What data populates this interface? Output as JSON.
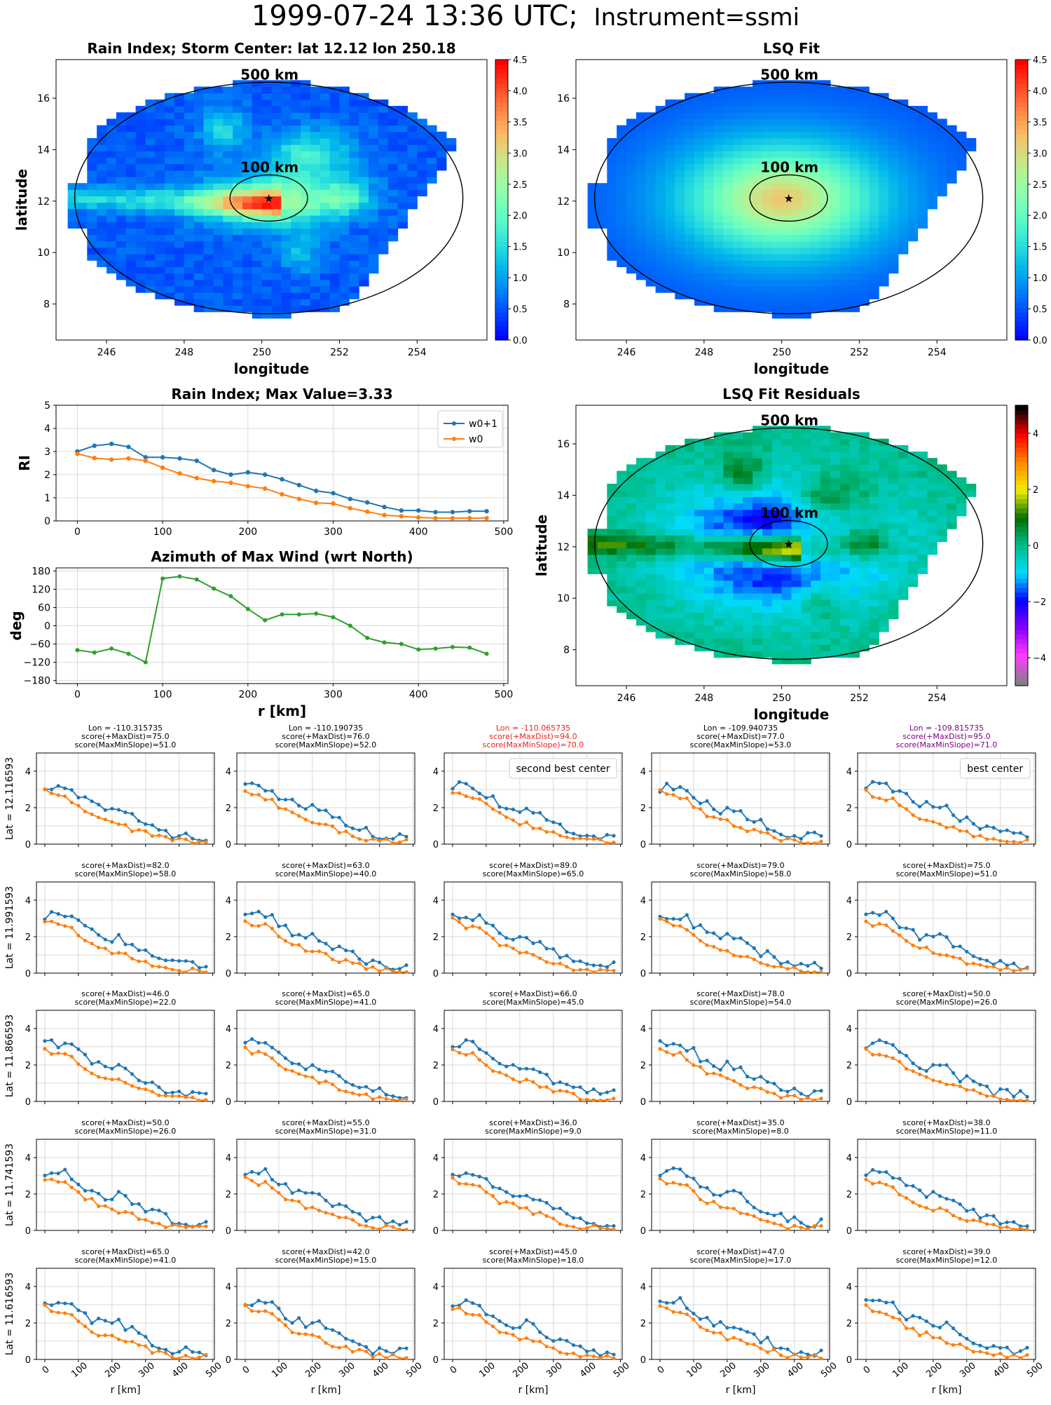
{
  "page": {
    "title_main": "1999-07-24 13:36 UTC;",
    "title_instrument": "Instrument=ssmi"
  },
  "maps": [
    {
      "key": "rain_index_map",
      "title": "Rain Index; Storm Center: lat 12.12 lon 250.18",
      "xlabel": "longitude",
      "ylabel": "latitude",
      "xticks": [
        "246",
        "248",
        "250",
        "252",
        "254"
      ],
      "yticks": [
        "8",
        "10",
        "12",
        "14",
        "16"
      ],
      "ring_labels": [
        "500 km",
        "100 km"
      ],
      "colorbar": {
        "cmap": "rainbow",
        "range": [
          0.0,
          4.5
        ],
        "ticks": [
          "0.0",
          "0.5",
          "1.0",
          "1.5",
          "2.0",
          "2.5",
          "3.0",
          "3.5",
          "4.0",
          "4.5"
        ]
      }
    },
    {
      "key": "lsq_fit_map",
      "title": "LSQ Fit",
      "xlabel": "longitude",
      "ylabel": "",
      "xticks": [
        "246",
        "248",
        "250",
        "252",
        "254"
      ],
      "yticks": [
        "8",
        "10",
        "12",
        "14",
        "16"
      ],
      "ring_labels": [
        "500 km",
        "100 km"
      ],
      "colorbar": {
        "cmap": "rainbow",
        "range": [
          0.0,
          4.5
        ],
        "ticks": [
          "0.0",
          "0.5",
          "1.0",
          "1.5",
          "2.0",
          "2.5",
          "3.0",
          "3.5",
          "4.0",
          "4.5"
        ]
      }
    },
    {
      "key": "lsq_residuals_map",
      "title": "LSQ Fit Residuals",
      "xlabel": "longitude",
      "ylabel": "latitude",
      "xticks": [
        "246",
        "248",
        "250",
        "252",
        "254"
      ],
      "yticks": [
        "8",
        "10",
        "12",
        "14",
        "16"
      ],
      "ring_labels": [
        "500 km",
        "100 km"
      ],
      "colorbar": {
        "cmap": "diverging",
        "range": [
          -5,
          5
        ],
        "ticks": [
          "−4",
          "−2",
          "0",
          "2",
          "4"
        ]
      }
    }
  ],
  "chart_data": [
    {
      "type": "line",
      "key": "rain_index_profile",
      "title": "Rain Index; Max Value=3.33",
      "ylabel": "RI",
      "xlim": [
        -25,
        505
      ],
      "ylim": [
        0,
        5
      ],
      "xticks": [
        "0",
        "100",
        "200",
        "300",
        "400",
        "500"
      ],
      "yticks": [
        "0",
        "1",
        "2",
        "3",
        "4",
        "5"
      ],
      "legend_position": "top-right",
      "x": [
        0,
        20,
        40,
        60,
        80,
        100,
        120,
        140,
        160,
        180,
        200,
        220,
        240,
        260,
        280,
        300,
        320,
        340,
        360,
        380,
        400,
        420,
        440,
        460,
        480
      ],
      "series": [
        {
          "name": "w0+1",
          "color": "#1f77b4",
          "marker": "star",
          "values": [
            3.0,
            3.25,
            3.33,
            3.2,
            2.75,
            2.75,
            2.7,
            2.6,
            2.2,
            2.0,
            2.1,
            2.0,
            1.8,
            1.55,
            1.3,
            1.2,
            0.95,
            0.8,
            0.6,
            0.45,
            0.45,
            0.38,
            0.38,
            0.42,
            0.42
          ]
        },
        {
          "name": "w0",
          "color": "#ff7f0e",
          "marker": "dot",
          "values": [
            2.9,
            2.72,
            2.65,
            2.7,
            2.6,
            2.3,
            2.05,
            1.85,
            1.72,
            1.65,
            1.5,
            1.4,
            1.15,
            0.95,
            0.78,
            0.75,
            0.55,
            0.4,
            0.25,
            0.2,
            0.15,
            0.12,
            0.12,
            0.12,
            0.12
          ]
        }
      ]
    },
    {
      "type": "line",
      "key": "azimuth_profile",
      "title": "Azimuth of Max Wind (wrt North)",
      "xlabel": "r [km]",
      "ylabel": "deg",
      "xlim": [
        -25,
        505
      ],
      "ylim": [
        -190,
        190
      ],
      "xticks": [
        "0",
        "100",
        "200",
        "300",
        "400",
        "500"
      ],
      "yticks": [
        "−180",
        "−120",
        "−60",
        "0",
        "60",
        "120",
        "180"
      ],
      "x": [
        0,
        20,
        40,
        60,
        80,
        100,
        120,
        140,
        160,
        180,
        200,
        220,
        240,
        260,
        280,
        300,
        320,
        340,
        360,
        380,
        400,
        420,
        440,
        460,
        480
      ],
      "series": [
        {
          "name": "",
          "color": "#2ca02c",
          "values": [
            -80,
            -88,
            -75,
            -92,
            -120,
            155,
            162,
            152,
            122,
            97,
            55,
            18,
            37,
            37,
            40,
            28,
            0,
            -40,
            -55,
            -60,
            -78,
            -75,
            -70,
            -72,
            -92
          ]
        }
      ]
    },
    {
      "type": "line",
      "key": "candidate_grid",
      "xlabel": "r [km]",
      "xlim": [
        -25,
        505
      ],
      "ylim": [
        0,
        5
      ],
      "xticks": [
        "0",
        "100",
        "200",
        "300",
        "400",
        "500"
      ],
      "yticks": [
        "0",
        "2",
        "4"
      ],
      "columns": [
        {
          "lon_label": "Lon = -110.315735",
          "highlight": ""
        },
        {
          "lon_label": "Lon = -110.190735",
          "highlight": ""
        },
        {
          "lon_label": "Lon = -110.065735",
          "highlight": "red"
        },
        {
          "lon_label": "Lon = -109.940735",
          "highlight": ""
        },
        {
          "lon_label": "Lon = -109.815735",
          "highlight": "purple"
        }
      ],
      "rows": [
        {
          "lat_label": "Lat = 12.116593",
          "cells": [
            {
              "maxdist": "score(+MaxDist)=75.0",
              "slope": "score(MaxMinSlope)=51.0",
              "legend": ""
            },
            {
              "maxdist": "score(+MaxDist)=76.0",
              "slope": "score(MaxMinSlope)=52.0",
              "legend": ""
            },
            {
              "maxdist": "score(+MaxDist)=94.0",
              "slope": "score(MaxMinSlope)=70.0",
              "legend": "second best center"
            },
            {
              "maxdist": "score(+MaxDist)=77.0",
              "slope": "score(MaxMinSlope)=53.0",
              "legend": ""
            },
            {
              "maxdist": "score(+MaxDist)=95.0",
              "slope": "score(MaxMinSlope)=71.0",
              "legend": "best center"
            }
          ]
        },
        {
          "lat_label": "Lat = 11.991593",
          "cells": [
            {
              "maxdist": "score(+MaxDist)=82.0",
              "slope": "score(MaxMinSlope)=58.0",
              "legend": ""
            },
            {
              "maxdist": "score(+MaxDist)=63.0",
              "slope": "score(MaxMinSlope)=40.0",
              "legend": ""
            },
            {
              "maxdist": "score(+MaxDist)=89.0",
              "slope": "score(MaxMinSlope)=65.0",
              "legend": ""
            },
            {
              "maxdist": "score(+MaxDist)=79.0",
              "slope": "score(MaxMinSlope)=58.0",
              "legend": ""
            },
            {
              "maxdist": "score(+MaxDist)=75.0",
              "slope": "score(MaxMinSlope)=51.0",
              "legend": ""
            }
          ]
        },
        {
          "lat_label": "Lat = 11.866593",
          "cells": [
            {
              "maxdist": "score(+MaxDist)=46.0",
              "slope": "score(MaxMinSlope)=22.0",
              "legend": ""
            },
            {
              "maxdist": "score(+MaxDist)=65.0",
              "slope": "score(MaxMinSlope)=41.0",
              "legend": ""
            },
            {
              "maxdist": "score(+MaxDist)=66.0",
              "slope": "score(MaxMinSlope)=45.0",
              "legend": ""
            },
            {
              "maxdist": "score(+MaxDist)=78.0",
              "slope": "score(MaxMinSlope)=54.0",
              "legend": ""
            },
            {
              "maxdist": "score(+MaxDist)=50.0",
              "slope": "score(MaxMinSlope)=26.0",
              "legend": ""
            }
          ]
        },
        {
          "lat_label": "Lat = 11.741593",
          "cells": [
            {
              "maxdist": "score(+MaxDist)=50.0",
              "slope": "score(MaxMinSlope)=26.0",
              "legend": ""
            },
            {
              "maxdist": "score(+MaxDist)=55.0",
              "slope": "score(MaxMinSlope)=31.0",
              "legend": ""
            },
            {
              "maxdist": "score(+MaxDist)=36.0",
              "slope": "score(MaxMinSlope)=9.0",
              "legend": ""
            },
            {
              "maxdist": "score(+MaxDist)=35.0",
              "slope": "score(MaxMinSlope)=8.0",
              "legend": ""
            },
            {
              "maxdist": "score(+MaxDist)=38.0",
              "slope": "score(MaxMinSlope)=11.0",
              "legend": ""
            }
          ]
        },
        {
          "lat_label": "Lat = 11.616593",
          "cells": [
            {
              "maxdist": "score(+MaxDist)=65.0",
              "slope": "score(MaxMinSlope)=41.0",
              "legend": ""
            },
            {
              "maxdist": "score(+MaxDist)=42.0",
              "slope": "score(MaxMinSlope)=15.0",
              "legend": ""
            },
            {
              "maxdist": "score(+MaxDist)=45.0",
              "slope": "score(MaxMinSlope)=18.0",
              "legend": ""
            },
            {
              "maxdist": "score(+MaxDist)=47.0",
              "slope": "score(MaxMinSlope)=17.0",
              "legend": ""
            },
            {
              "maxdist": "score(+MaxDist)=39.0",
              "slope": "score(MaxMinSlope)=12.0",
              "legend": ""
            }
          ]
        }
      ],
      "series_colors": {
        "blue": "#1f77b4",
        "orange": "#ff7f0e"
      },
      "x": [
        0,
        20,
        40,
        60,
        80,
        100,
        120,
        140,
        160,
        180,
        200,
        220,
        240,
        260,
        280,
        300,
        320,
        340,
        360,
        380,
        400,
        420,
        440,
        460,
        480
      ],
      "blue_base": [
        3.1,
        3.2,
        3.2,
        3.15,
        3.0,
        2.7,
        2.4,
        2.2,
        2.05,
        1.9,
        1.95,
        1.95,
        1.8,
        1.55,
        1.3,
        1.15,
        1.0,
        0.85,
        0.7,
        0.55,
        0.5,
        0.45,
        0.4,
        0.4,
        0.4
      ],
      "orange_base": [
        2.9,
        2.7,
        2.6,
        2.55,
        2.4,
        2.1,
        1.8,
        1.6,
        1.45,
        1.35,
        1.2,
        1.1,
        1.0,
        0.85,
        0.7,
        0.6,
        0.5,
        0.4,
        0.3,
        0.22,
        0.18,
        0.15,
        0.12,
        0.12,
        0.12
      ]
    }
  ]
}
